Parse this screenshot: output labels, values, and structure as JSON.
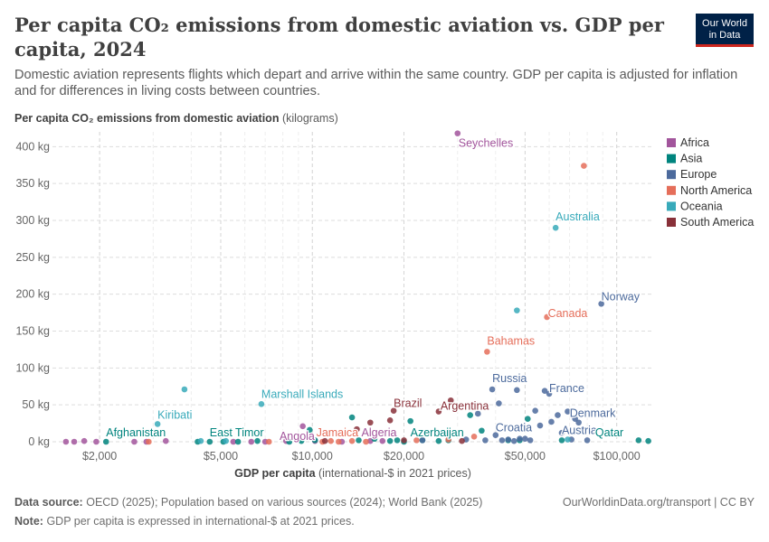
{
  "header": {
    "title": "Per capita CO₂ emissions from domestic aviation vs. GDP per capita, 2024",
    "subtitle": "Domestic aviation represents flights which depart and arrive within the same country. GDP per capita is adjusted for inflation and for differences in living costs between countries.",
    "logo_line1": "Our World",
    "logo_line2": "in Data"
  },
  "footer": {
    "source_label": "Data source:",
    "source_text": "OECD (2025); Population based on various sources (2024); World Bank (2025)",
    "note_label": "Note:",
    "note_text": "GDP per capita is expressed in international-$ at 2021 prices.",
    "url": "OurWorldinData.org/transport | CC BY"
  },
  "chart_data": {
    "type": "scatter",
    "x_scale": "log",
    "title": "Per capita CO₂ emissions from domestic aviation vs. GDP per capita, 2024",
    "ylabel_bold": "Per capita CO₂ emissions from domestic aviation",
    "ylabel_unit": "(kilograms)",
    "xlabel_bold": "GDP per capita",
    "xlabel_unit": "(international-$ in 2021 prices)",
    "xlim": [
      1400,
      130000
    ],
    "ylim": [
      0,
      420
    ],
    "x_ticks": [
      {
        "value": 2000,
        "label": "$2,000"
      },
      {
        "value": 5000,
        "label": "$5,000"
      },
      {
        "value": 10000,
        "label": "$10,000"
      },
      {
        "value": 20000,
        "label": "$20,000"
      },
      {
        "value": 50000,
        "label": "$50,000"
      },
      {
        "value": 100000,
        "label": "$100,000"
      }
    ],
    "y_ticks": [
      {
        "value": 0,
        "label": "0 kg"
      },
      {
        "value": 50,
        "label": "50 kg"
      },
      {
        "value": 100,
        "label": "100 kg"
      },
      {
        "value": 150,
        "label": "150 kg"
      },
      {
        "value": 200,
        "label": "200 kg"
      },
      {
        "value": 250,
        "label": "250 kg"
      },
      {
        "value": 300,
        "label": "300 kg"
      },
      {
        "value": 350,
        "label": "350 kg"
      },
      {
        "value": 400,
        "label": "400 kg"
      }
    ],
    "grid": true,
    "legend_position": "right",
    "series": [
      {
        "name": "Africa",
        "color": "#a2559c",
        "points": [
          [
            1550,
            0,
            ""
          ],
          [
            1650,
            0,
            ""
          ],
          [
            1780,
            1,
            ""
          ],
          [
            1950,
            0,
            ""
          ],
          [
            2600,
            0,
            ""
          ],
          [
            2850,
            0,
            ""
          ],
          [
            3300,
            1,
            ""
          ],
          [
            5500,
            0,
            ""
          ],
          [
            6300,
            0,
            ""
          ],
          [
            7000,
            0,
            ""
          ],
          [
            8200,
            1,
            ""
          ],
          [
            9300,
            21,
            ""
          ],
          [
            10200,
            1,
            ""
          ],
          [
            12500,
            0,
            ""
          ],
          [
            15500,
            1,
            ""
          ],
          [
            17000,
            1,
            ""
          ],
          [
            30000,
            418,
            "Seychelles"
          ]
        ]
      },
      {
        "name": "Asia",
        "color": "#00847e",
        "points": [
          [
            2100,
            0,
            ""
          ],
          [
            4200,
            0,
            ""
          ],
          [
            4600,
            0,
            ""
          ],
          [
            5100,
            0,
            ""
          ],
          [
            5700,
            0,
            ""
          ],
          [
            6600,
            1,
            ""
          ],
          [
            8400,
            0,
            ""
          ],
          [
            9200,
            1,
            ""
          ],
          [
            9800,
            16,
            ""
          ],
          [
            10200,
            2,
            ""
          ],
          [
            13500,
            33,
            ""
          ],
          [
            14200,
            2,
            ""
          ],
          [
            16000,
            4,
            ""
          ],
          [
            18000,
            1,
            ""
          ],
          [
            19000,
            2,
            ""
          ],
          [
            20000,
            0,
            ""
          ],
          [
            21000,
            28,
            ""
          ],
          [
            23000,
            2,
            ""
          ],
          [
            26000,
            1,
            ""
          ],
          [
            28000,
            2,
            ""
          ],
          [
            33000,
            36,
            ""
          ],
          [
            36000,
            15,
            ""
          ],
          [
            44000,
            2,
            ""
          ],
          [
            48000,
            2,
            ""
          ],
          [
            51000,
            31,
            ""
          ],
          [
            66000,
            2,
            ""
          ],
          [
            118000,
            2,
            ""
          ],
          [
            127000,
            1,
            ""
          ]
        ]
      },
      {
        "name": "Europe",
        "color": "#4c6a9c",
        "points": [
          [
            23000,
            2,
            ""
          ],
          [
            32000,
            3,
            ""
          ],
          [
            35000,
            38,
            ""
          ],
          [
            37000,
            2,
            ""
          ],
          [
            39000,
            71,
            "Russia"
          ],
          [
            40000,
            9,
            ""
          ],
          [
            41000,
            52,
            ""
          ],
          [
            42000,
            2,
            ""
          ],
          [
            44000,
            3,
            ""
          ],
          [
            46000,
            1,
            ""
          ],
          [
            47000,
            70,
            ""
          ],
          [
            48000,
            4,
            ""
          ],
          [
            50000,
            4,
            ""
          ],
          [
            52000,
            2,
            ""
          ],
          [
            54000,
            42,
            ""
          ],
          [
            56000,
            22,
            ""
          ],
          [
            58000,
            69,
            ""
          ],
          [
            60000,
            65,
            "France"
          ],
          [
            61000,
            27,
            ""
          ],
          [
            64000,
            36,
            ""
          ],
          [
            66000,
            12,
            ""
          ],
          [
            69000,
            41,
            ""
          ],
          [
            71000,
            3,
            ""
          ],
          [
            73000,
            31,
            ""
          ],
          [
            75000,
            26,
            ""
          ],
          [
            80000,
            2,
            ""
          ],
          [
            89000,
            187,
            "Norway"
          ]
        ]
      },
      {
        "name": "North America",
        "color": "#e56e5a",
        "points": [
          [
            2900,
            0,
            ""
          ],
          [
            7200,
            0,
            ""
          ],
          [
            10800,
            0,
            ""
          ],
          [
            11500,
            1,
            ""
          ],
          [
            12200,
            0,
            ""
          ],
          [
            13500,
            1,
            ""
          ],
          [
            15000,
            0,
            ""
          ],
          [
            22000,
            2,
            ""
          ],
          [
            28000,
            3,
            ""
          ],
          [
            34000,
            7,
            ""
          ],
          [
            37500,
            122,
            "Bahamas"
          ],
          [
            59000,
            169,
            "Canada"
          ],
          [
            78000,
            374,
            ""
          ]
        ]
      },
      {
        "name": "Oceania",
        "color": "#38aaba",
        "points": [
          [
            3100,
            24,
            "Kiribati"
          ],
          [
            3800,
            71,
            ""
          ],
          [
            4300,
            1,
            ""
          ],
          [
            5200,
            1,
            ""
          ],
          [
            6800,
            51,
            "Marshall Islands"
          ],
          [
            47000,
            178,
            ""
          ],
          [
            63000,
            290,
            "Australia"
          ],
          [
            69000,
            3,
            ""
          ]
        ]
      },
      {
        "name": "South America",
        "color": "#883039",
        "points": [
          [
            11000,
            1,
            ""
          ],
          [
            14000,
            17,
            ""
          ],
          [
            15500,
            26,
            ""
          ],
          [
            18000,
            29,
            ""
          ],
          [
            18500,
            42,
            "Brazil"
          ],
          [
            20000,
            2,
            ""
          ],
          [
            26000,
            41,
            "Argentina"
          ],
          [
            28500,
            56,
            ""
          ],
          [
            31000,
            1,
            ""
          ]
        ]
      }
    ],
    "labels": [
      {
        "text": "Seychelles",
        "x": 30000,
        "y": 418,
        "color": "#a2559c",
        "anchor": "start",
        "dx": 1,
        "dy": 15
      },
      {
        "text": "Australia",
        "x": 63000,
        "y": 290,
        "color": "#38aaba",
        "anchor": "start",
        "dx": 0,
        "dy": -8
      },
      {
        "text": "Norway",
        "x": 89000,
        "y": 187,
        "color": "#4c6a9c",
        "anchor": "start",
        "dx": 0,
        "dy": -4
      },
      {
        "text": "Canada",
        "x": 59000,
        "y": 169,
        "color": "#e56e5a",
        "anchor": "start",
        "dx": 1,
        "dy": 0
      },
      {
        "text": "Bahamas",
        "x": 37500,
        "y": 122,
        "color": "#e56e5a",
        "anchor": "start",
        "dx": 0,
        "dy": -8
      },
      {
        "text": "Russia",
        "x": 39000,
        "y": 71,
        "color": "#4c6a9c",
        "anchor": "start",
        "dx": 0,
        "dy": -8
      },
      {
        "text": "France",
        "x": 60000,
        "y": 65,
        "color": "#4c6a9c",
        "anchor": "start",
        "dx": 0,
        "dy": -2
      },
      {
        "text": "Marshall Islands",
        "x": 6800,
        "y": 51,
        "color": "#38aaba",
        "anchor": "start",
        "dx": 0,
        "dy": -7
      },
      {
        "text": "Brazil",
        "x": 18500,
        "y": 42,
        "color": "#883039",
        "anchor": "start",
        "dx": 0,
        "dy": -4
      },
      {
        "text": "Argentina",
        "x": 26000,
        "y": 41,
        "color": "#883039",
        "anchor": "start",
        "dx": 2,
        "dy": -2
      },
      {
        "text": "Denmark",
        "x": 73000,
        "y": 31,
        "color": "#4c6a9c",
        "anchor": "start",
        "dx": -6,
        "dy": -2
      },
      {
        "text": "Kiribati",
        "x": 3100,
        "y": 24,
        "color": "#38aaba",
        "anchor": "start",
        "dx": 0,
        "dy": -6
      },
      {
        "text": "Croatia",
        "x": 40000,
        "y": 9,
        "color": "#4c6a9c",
        "anchor": "start",
        "dx": 0,
        "dy": -4
      },
      {
        "text": "Austria",
        "x": 66000,
        "y": 3,
        "color": "#4c6a9c",
        "anchor": "start",
        "dx": 0,
        "dy": -6
      },
      {
        "text": "Afghanistan",
        "x": 2100,
        "y": 0,
        "color": "#00847e",
        "anchor": "start",
        "dx": 0,
        "dy": -6
      },
      {
        "text": "East Timor",
        "x": 4600,
        "y": 0,
        "color": "#00847e",
        "anchor": "start",
        "dx": 0,
        "dy": -6
      },
      {
        "text": "Angola",
        "x": 7800,
        "y": 0,
        "color": "#a2559c",
        "anchor": "start",
        "dx": 0,
        "dy": -2
      },
      {
        "text": "Jamaica",
        "x": 10300,
        "y": 0,
        "color": "#e56e5a",
        "anchor": "start",
        "dx": 0,
        "dy": -6
      },
      {
        "text": "Algeria",
        "x": 14500,
        "y": 0,
        "color": "#a2559c",
        "anchor": "start",
        "dx": 0,
        "dy": -6
      },
      {
        "text": "Azerbaijan",
        "x": 21000,
        "y": 0,
        "color": "#00847e",
        "anchor": "start",
        "dx": 0,
        "dy": -6
      },
      {
        "text": "Qatar",
        "x": 85000,
        "y": 0,
        "color": "#00847e",
        "anchor": "start",
        "dx": 0,
        "dy": -6
      }
    ]
  }
}
